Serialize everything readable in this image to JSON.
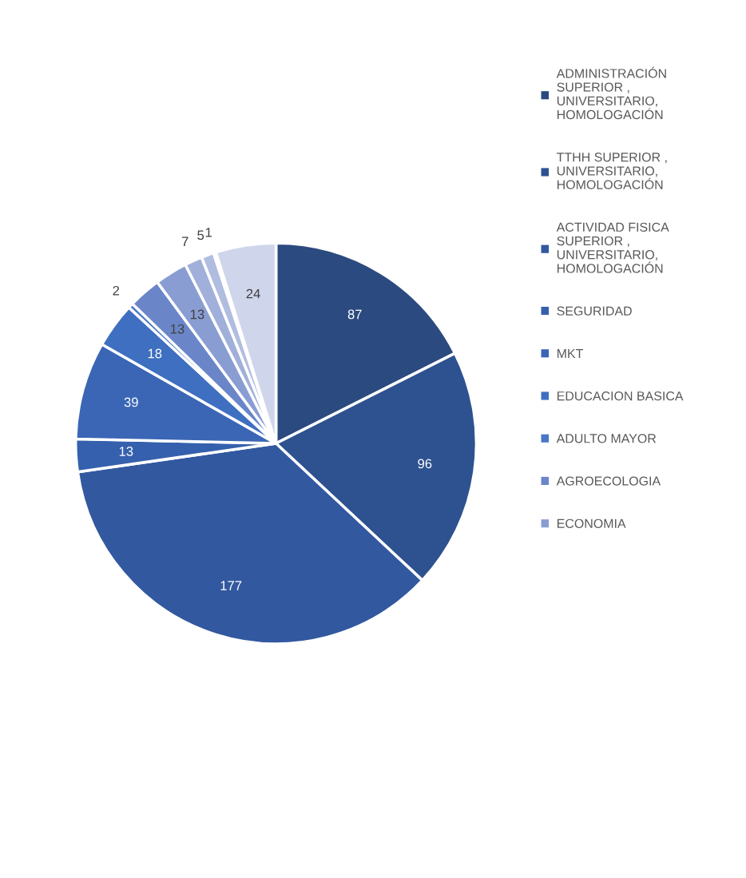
{
  "chart_data": {
    "type": "pie",
    "categories": [
      "ADMINISTRACIÓN SUPERIOR , UNIVERSITARIO, HOMOLOGACIÓN",
      "TTHH SUPERIOR , UNIVERSITARIO, HOMOLOGACIÓN",
      "ACTIVIDAD FISICA SUPERIOR , UNIVERSITARIO, HOMOLOGACIÓN",
      "SEGURIDAD",
      "MKT",
      "EDUCACION BASICA",
      "ADULTO MAYOR",
      "AGROECOLOGIA",
      "ECONOMIA",
      null,
      null,
      null,
      null
    ],
    "values": [
      87,
      96,
      177,
      13,
      39,
      18,
      2,
      13,
      13,
      7,
      5,
      1,
      24
    ],
    "colors": [
      "#2b4a7f",
      "#2e5190",
      "#3258a0",
      "#3560ad",
      "#3a66b5",
      "#3e6fc0",
      "#4a78c6",
      "#6a86c9",
      "#8a9dd3",
      "#a1b0da",
      "#b0bde0",
      "#bfc9e5",
      "#cfd5eb"
    ],
    "data_labels": true,
    "legend": "right"
  }
}
